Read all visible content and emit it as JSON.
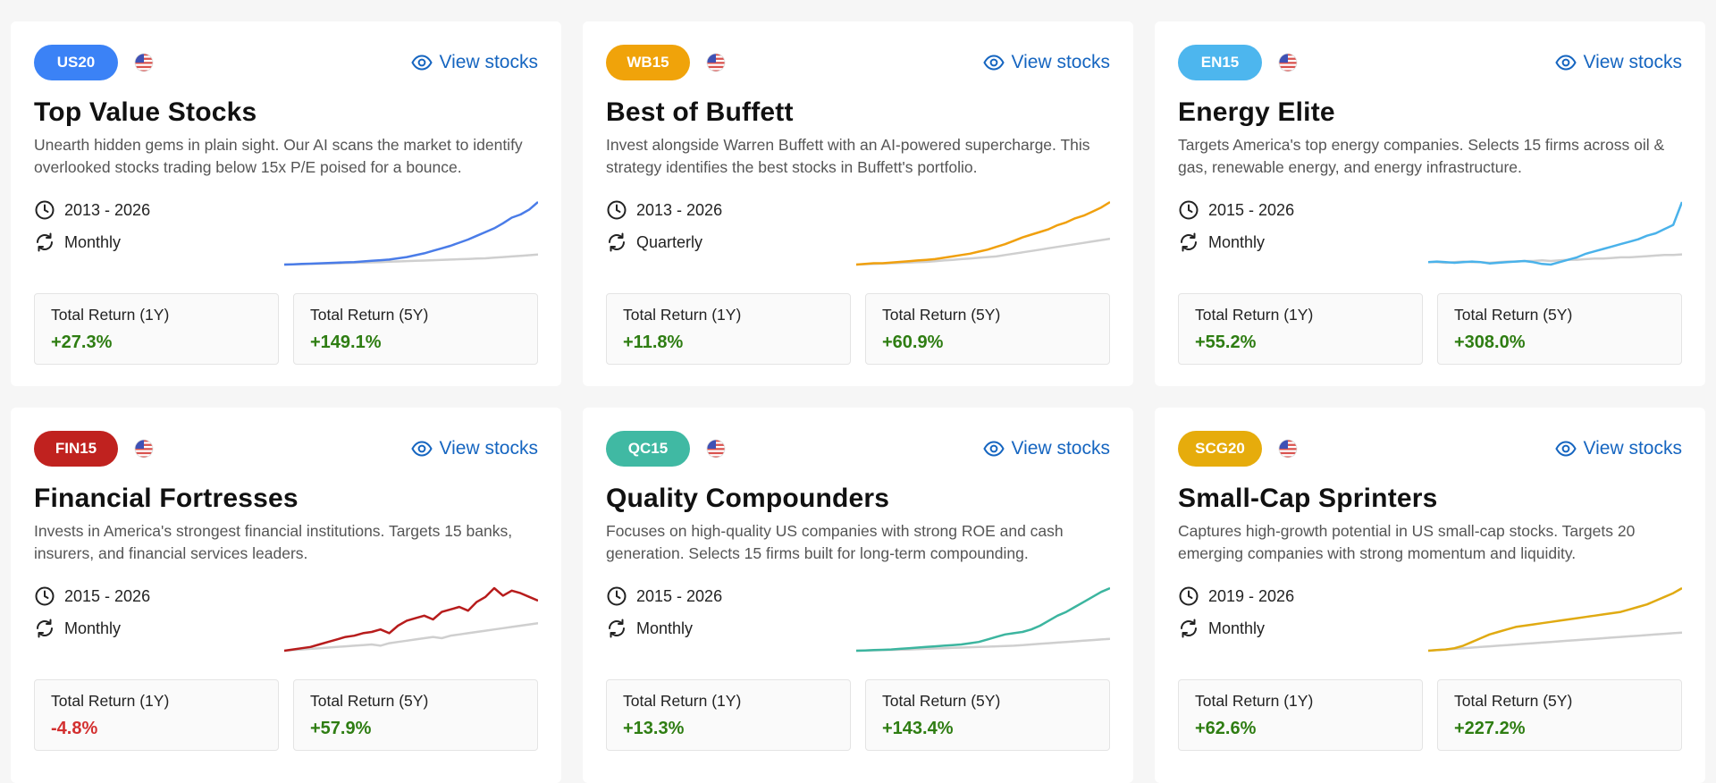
{
  "view_stocks_label": "View stocks",
  "cards": [
    {
      "code": "US20",
      "code_color": "#3b82f6",
      "line_color": "#4a7ce8",
      "title": "Top Value Stocks",
      "description": "Unearth hidden gems in plain sight. Our AI scans the market to identify overlooked stocks trading below 15x P/E poised for a bounce.",
      "period": "2013 - 2026",
      "rebalance": "Monthly",
      "return_1y_label": "Total Return (1Y)",
      "return_1y": "+27.3%",
      "return_1y_sign": "pos",
      "return_5y_label": "Total Return (5Y)",
      "return_5y": "+149.1%",
      "return_5y_sign": "pos",
      "spark": [
        0,
        0.5,
        1,
        1.5,
        2,
        2.5,
        3,
        3.5,
        4,
        5,
        6,
        7,
        8,
        10,
        12,
        15,
        18,
        22,
        26,
        30,
        35,
        40,
        46,
        52,
        58,
        66,
        75,
        80,
        88,
        100
      ],
      "bench": [
        0,
        0.3,
        0.6,
        1,
        1.3,
        1.6,
        2,
        2.4,
        2.8,
        3.2,
        3.6,
        4,
        4.5,
        5,
        5.5,
        6,
        6.5,
        7,
        7.5,
        8,
        8.5,
        9,
        9.5,
        10,
        11,
        12,
        13,
        14,
        15,
        16
      ]
    },
    {
      "code": "WB15",
      "code_color": "#f0a30a",
      "line_color": "#f0a00e",
      "title": "Best of Buffett",
      "description": "Invest alongside Warren Buffett with an AI-powered supercharge. This strategy identifies the best stocks in Buffett's portfolio.",
      "period": "2013 - 2026",
      "rebalance": "Quarterly",
      "return_1y_label": "Total Return (1Y)",
      "return_1y": "+11.8%",
      "return_1y_sign": "pos",
      "return_5y_label": "Total Return (5Y)",
      "return_5y": "+60.9%",
      "return_5y_sign": "pos",
      "spark": [
        0,
        1,
        2,
        2,
        3,
        4,
        5,
        6,
        7,
        8,
        10,
        12,
        14,
        16,
        19,
        22,
        26,
        30,
        35,
        40,
        44,
        48,
        52,
        58,
        62,
        68,
        72,
        78,
        84,
        92
      ],
      "bench": [
        0,
        0.5,
        1,
        1.5,
        2,
        2.5,
        3,
        3.5,
        4,
        5,
        6,
        7,
        8,
        9,
        10,
        11,
        12,
        14,
        16,
        18,
        20,
        22,
        24,
        26,
        28,
        30,
        32,
        34,
        36,
        38
      ]
    },
    {
      "code": "EN15",
      "code_color": "#4db6ee",
      "line_color": "#4ab2ea",
      "title": "Energy Elite",
      "description": "Targets America's top energy companies. Selects 15 firms across oil & gas, renewable energy, and energy infrastructure.",
      "period": "2015 - 2026",
      "rebalance": "Monthly",
      "return_1y_label": "Total Return (1Y)",
      "return_1y": "+55.2%",
      "return_1y_sign": "pos",
      "return_5y_label": "Total Return (5Y)",
      "return_5y": "+308.0%",
      "return_5y_sign": "pos",
      "spark": [
        0,
        1,
        0,
        -1,
        0,
        1,
        0,
        -2,
        -1,
        0,
        1,
        2,
        0,
        -3,
        -4,
        0,
        4,
        8,
        14,
        18,
        22,
        26,
        30,
        34,
        38,
        44,
        48,
        55,
        62,
        100
      ],
      "bench": [
        0,
        0,
        -1,
        0,
        1,
        0,
        0,
        -1,
        0,
        1,
        1,
        2,
        2,
        3,
        2,
        3,
        4,
        4,
        5,
        6,
        6,
        7,
        8,
        8,
        9,
        10,
        11,
        12,
        12,
        13
      ]
    },
    {
      "code": "FIN15",
      "code_color": "#c0221f",
      "line_color": "#b71c1c",
      "title": "Financial Fortresses",
      "description": "Invests in America's strongest financial institutions. Targets 15 banks, insurers, and financial services leaders.",
      "period": "2015 - 2026",
      "rebalance": "Monthly",
      "return_1y_label": "Total Return (1Y)",
      "return_1y": "+-4.8%",
      "return_1y_sign": "neg",
      "return_5y_label": "Total Return (5Y)",
      "return_5y": "+57.9%",
      "return_5y_sign": "pos",
      "spark": [
        0,
        2,
        4,
        6,
        10,
        14,
        18,
        22,
        24,
        28,
        30,
        34,
        28,
        40,
        48,
        52,
        56,
        50,
        62,
        66,
        70,
        64,
        78,
        86,
        100,
        88,
        96,
        92,
        86,
        80
      ],
      "bench": [
        0,
        1,
        2,
        3,
        4,
        5,
        6,
        7,
        8,
        9,
        10,
        8,
        12,
        14,
        16,
        18,
        20,
        22,
        20,
        24,
        26,
        28,
        30,
        32,
        34,
        36,
        38,
        40,
        42,
        44
      ]
    },
    {
      "code": "QC15",
      "code_color": "#40b9a3",
      "line_color": "#3cb59f",
      "title": "Quality Compounders",
      "description": "Focuses on high-quality US companies with strong ROE and cash generation. Selects 15 firms built for long-term compounding.",
      "period": "2015 - 2026",
      "rebalance": "Monthly",
      "return_1y_label": "Total Return (1Y)",
      "return_1y": "+13.3%",
      "return_1y_sign": "pos",
      "return_5y_label": "Total Return (5Y)",
      "return_5y": "+143.4%",
      "return_5y_sign": "pos",
      "spark": [
        0,
        0.5,
        1,
        1.5,
        2,
        3,
        4,
        5,
        6,
        7,
        8,
        9,
        10,
        12,
        14,
        18,
        22,
        26,
        28,
        30,
        34,
        40,
        48,
        56,
        62,
        70,
        78,
        86,
        94,
        100
      ],
      "bench": [
        0,
        0.3,
        0.6,
        1,
        1.3,
        1.6,
        2,
        2.5,
        3,
        3.5,
        4,
        4.5,
        5,
        5.5,
        6,
        6.5,
        7,
        7.5,
        8,
        9,
        10,
        11,
        12,
        13,
        14,
        15,
        16,
        17,
        18,
        19
      ]
    },
    {
      "code": "SCG20",
      "code_color": "#e6ac0c",
      "line_color": "#e0aa12",
      "title": "Small-Cap Sprinters",
      "description": "Captures high-growth potential in US small-cap stocks. Targets 20 emerging companies with strong momentum and liquidity.",
      "period": "2019 - 2026",
      "rebalance": "Monthly",
      "return_1y_label": "Total Return (1Y)",
      "return_1y": "+62.6%",
      "return_1y_sign": "pos",
      "return_5y_label": "Total Return (5Y)",
      "return_5y": "+227.2%",
      "return_5y_sign": "pos",
      "spark": [
        0,
        1,
        2,
        4,
        8,
        14,
        20,
        26,
        30,
        34,
        38,
        40,
        42,
        44,
        46,
        48,
        50,
        52,
        54,
        56,
        58,
        60,
        62,
        66,
        70,
        74,
        80,
        86,
        92,
        100
      ],
      "bench": [
        0,
        1,
        2,
        3,
        4,
        5,
        6,
        7,
        8,
        9,
        10,
        11,
        12,
        13,
        14,
        15,
        16,
        17,
        18,
        19,
        20,
        21,
        22,
        23,
        24,
        25,
        26,
        27,
        28,
        29
      ]
    }
  ]
}
